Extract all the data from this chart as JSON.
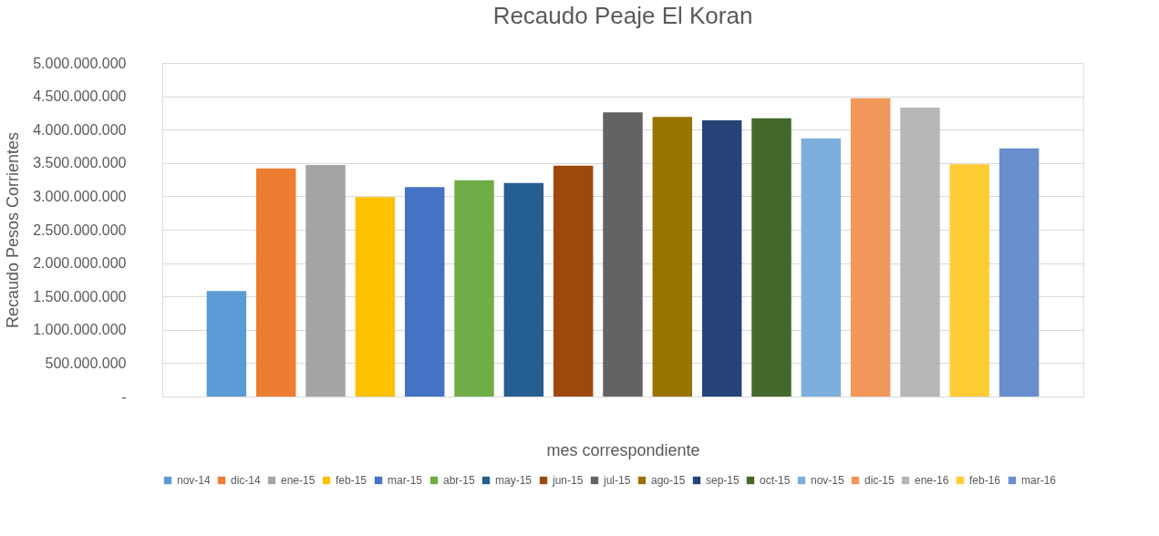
{
  "chart_data": {
    "type": "bar",
    "title": "Recaudo Peaje El Koran",
    "xlabel": "mes correspondiente",
    "ylabel": "Recaudo Pesos Corrientes",
    "categories": [
      null
    ],
    "series": [
      {
        "name": "nov-14",
        "color": "#5b9bd5",
        "values": [
          1580000000
        ]
      },
      {
        "name": "dic-14",
        "color": "#ed7d31",
        "values": [
          3420000000
        ]
      },
      {
        "name": "ene-15",
        "color": "#a5a5a5",
        "values": [
          3470000000
        ]
      },
      {
        "name": "feb-15",
        "color": "#ffc000",
        "values": [
          2990000000
        ]
      },
      {
        "name": "mar-15",
        "color": "#4472c4",
        "values": [
          3140000000
        ]
      },
      {
        "name": "abr-15",
        "color": "#70ad47",
        "values": [
          3240000000
        ]
      },
      {
        "name": "may-15",
        "color": "#255e91",
        "values": [
          3200000000
        ]
      },
      {
        "name": "jun-15",
        "color": "#9e480e",
        "values": [
          3460000000
        ]
      },
      {
        "name": "jul-15",
        "color": "#636363",
        "values": [
          4260000000
        ]
      },
      {
        "name": "ago-15",
        "color": "#997300",
        "values": [
          4190000000
        ]
      },
      {
        "name": "sep-15",
        "color": "#264478",
        "values": [
          4140000000
        ]
      },
      {
        "name": "oct-15",
        "color": "#43682b",
        "values": [
          4170000000
        ]
      },
      {
        "name": "nov-15",
        "color": "#7cafdd",
        "values": [
          3870000000
        ]
      },
      {
        "name": "dic-15",
        "color": "#f1975a",
        "values": [
          4470000000
        ]
      },
      {
        "name": "ene-16",
        "color": "#b7b7b7",
        "values": [
          4330000000
        ]
      },
      {
        "name": "feb-16",
        "color": "#ffcd33",
        "values": [
          3480000000
        ]
      },
      {
        "name": "mar-16",
        "color": "#698ed0",
        "values": [
          3720000000
        ]
      }
    ],
    "ylim": [
      0,
      5000000000
    ],
    "yticks": [
      {
        "value": 0,
        "label": "-"
      },
      {
        "value": 500000000,
        "label": "500.000.000"
      },
      {
        "value": 1000000000,
        "label": "1.000.000.000"
      },
      {
        "value": 1500000000,
        "label": "1.500.000.000"
      },
      {
        "value": 2000000000,
        "label": "2.000.000.000"
      },
      {
        "value": 2500000000,
        "label": "2.500.000.000"
      },
      {
        "value": 3000000000,
        "label": "3.000.000.000"
      },
      {
        "value": 3500000000,
        "label": "3.500.000.000"
      },
      {
        "value": 4000000000,
        "label": "4.000.000.000"
      },
      {
        "value": 4500000000,
        "label": "4.500.000.000"
      },
      {
        "value": 5000000000,
        "label": "5.000.000.000"
      }
    ],
    "grid": "y",
    "legend": "bottom",
    "tick_labels": "y"
  }
}
